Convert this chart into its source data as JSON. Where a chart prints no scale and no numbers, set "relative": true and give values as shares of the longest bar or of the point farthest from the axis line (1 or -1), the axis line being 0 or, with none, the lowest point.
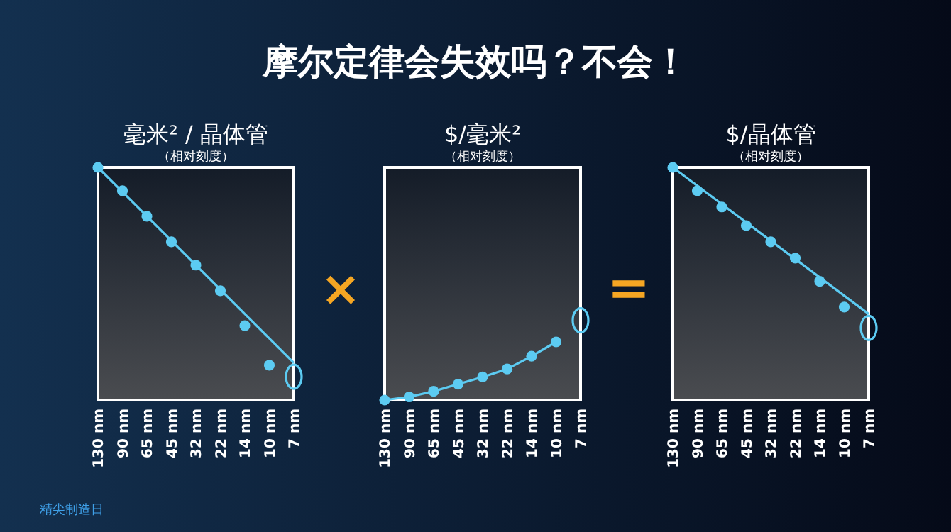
{
  "chart_data": [
    {
      "type": "scatter",
      "title": "毫米² / 晶体管",
      "subtitle": "（相对刻度）",
      "relative": true,
      "categories": [
        "130 nm",
        "90 nm",
        "65 nm",
        "45 nm",
        "32 nm",
        "22 nm",
        "14 nm",
        "10 nm",
        "7 nm"
      ],
      "annotations": [
        "摩尔定律会失效吗？不会！",
        "×"
      ],
      "series": [
        {
          "type": "line",
          "color": "#5ccbf2",
          "marker": "none",
          "values": [
            1.0,
            null,
            null,
            null,
            null,
            null,
            null,
            null,
            0.16
          ]
        },
        {
          "color": "#5ccbf2",
          "marker": "circle",
          "values": [
            1.0,
            0.9,
            0.79,
            0.68,
            0.58,
            0.47,
            0.32,
            0.15,
            null
          ]
        },
        {
          "color": "#5ccbf2",
          "marker": "circle",
          "line_style": "solid",
          "values": [
            null,
            null,
            null,
            null,
            null,
            null,
            null,
            null,
            0.1
          ]
        }
      ]
    },
    {
      "type": "line",
      "title": "$/毫米²",
      "subtitle": "（相对刻度）",
      "relative": true,
      "categories": [
        "130 nm",
        "90 nm",
        "65 nm",
        "45 nm",
        "32 nm",
        "22 nm",
        "14 nm",
        "10 nm",
        "7 nm"
      ],
      "annotations": [
        "="
      ],
      "series": [
        {
          "color": "#5ccbf2",
          "marker": "circle",
          "values": [
            0,
            0.04,
            0.11,
            0.2,
            0.29,
            0.39,
            0.55,
            0.73,
            null
          ]
        },
        {
          "type": "scatter",
          "color": "#5ccbf2",
          "marker": "circle",
          "line_style": "solid",
          "values": [
            null,
            null,
            null,
            null,
            null,
            null,
            null,
            null,
            1.0
          ]
        }
      ]
    },
    {
      "type": "scatter",
      "title": "$/晶体管",
      "subtitle": "（相对刻度）",
      "relative": true,
      "categories": [
        "130 nm",
        "90 nm",
        "65 nm",
        "45 nm",
        "32 nm",
        "22 nm",
        "14 nm",
        "10 nm",
        "7 nm"
      ],
      "annotations": [
        "精尖制造日"
      ],
      "series": [
        {
          "type": "line",
          "color": "#5ccbf2",
          "marker": "none",
          "values": [
            1.0,
            null,
            null,
            null,
            null,
            null,
            null,
            null,
            0.37
          ]
        },
        {
          "color": "#5ccbf2",
          "marker": "circle",
          "values": [
            1.0,
            0.9,
            0.83,
            0.75,
            0.68,
            0.61,
            0.51,
            0.4,
            null
          ]
        },
        {
          "color": "#5ccbf2",
          "marker": "circle",
          "line_style": "solid",
          "values": [
            null,
            null,
            null,
            null,
            null,
            null,
            null,
            null,
            0.31
          ]
        }
      ]
    }
  ]
}
